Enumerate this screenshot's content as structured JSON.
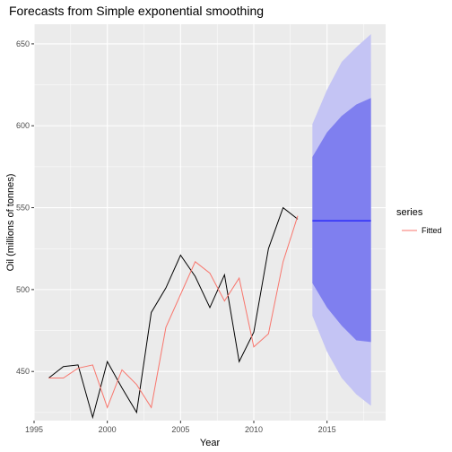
{
  "chart_data": {
    "type": "line",
    "title": "Forecasts from Simple exponential smoothing",
    "xlabel": "Year",
    "ylabel": "Oil (millions of tonnes)",
    "xlim": [
      1995,
      2019
    ],
    "ylim": [
      420,
      662
    ],
    "x_ticks": [
      1995,
      2000,
      2005,
      2010,
      2015
    ],
    "y_ticks": [
      450,
      500,
      550,
      600,
      650
    ],
    "grid": true,
    "legend": {
      "title": "series",
      "position": "right",
      "entries": [
        {
          "label": "Fitted",
          "color": "#F8766D"
        }
      ]
    },
    "series": [
      {
        "key": "observed",
        "color": "#000000",
        "x": [
          1996,
          1997,
          1998,
          1999,
          2000,
          2001,
          2002,
          2003,
          2004,
          2005,
          2006,
          2007,
          2008,
          2009,
          2010,
          2011,
          2012,
          2013
        ],
        "y": [
          446,
          453,
          454,
          422,
          456,
          440,
          425,
          486,
          501,
          521,
          508,
          489,
          509,
          456,
          474,
          525,
          550,
          543
        ]
      },
      {
        "name": "Fitted",
        "key": "fitted",
        "color": "#F8766D",
        "x": [
          1996,
          1997,
          1998,
          1999,
          2000,
          2001,
          2002,
          2003,
          2004,
          2005,
          2006,
          2007,
          2008,
          2009,
          2010,
          2011,
          2012,
          2013
        ],
        "y": [
          446,
          446,
          452,
          454,
          428,
          451,
          442,
          428,
          477,
          497,
          517,
          510,
          493,
          507,
          465,
          473,
          517,
          545
        ]
      }
    ],
    "forecast": {
      "x": [
        2014,
        2015,
        2016,
        2017,
        2018
      ],
      "mean": [
        542,
        542,
        542,
        542,
        542
      ],
      "lo80": [
        504,
        489,
        478,
        469,
        468
      ],
      "hi80": [
        581,
        596,
        606,
        613,
        617
      ],
      "lo95": [
        484,
        462,
        446,
        436,
        429
      ],
      "hi95": [
        601,
        622,
        639,
        648,
        656
      ],
      "mean_color": "#0000FF",
      "band80_color": "#7F7FEF",
      "band95_color": "#C4C4F4"
    }
  }
}
